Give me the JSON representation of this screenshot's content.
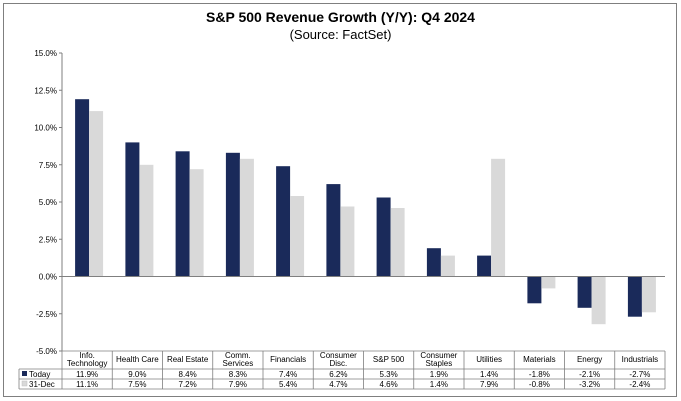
{
  "chart_data": {
    "type": "bar",
    "title": "S&P 500 Revenue Growth (Y/Y): Q4 2024",
    "subtitle": "(Source: FactSet)",
    "categories": [
      "Info. Technology",
      "Health Care",
      "Real Estate",
      "Comm. Services",
      "Financials",
      "Consumer Disc.",
      "S&P 500",
      "Consumer Staples",
      "Utilities",
      "Materials",
      "Energy",
      "Industrials"
    ],
    "category_lines": [
      [
        "Info.",
        "Technology"
      ],
      [
        "Health Care"
      ],
      [
        "Real Estate"
      ],
      [
        "Comm.",
        "Services"
      ],
      [
        "Financials"
      ],
      [
        "Consumer",
        "Disc."
      ],
      [
        "S&P 500"
      ],
      [
        "Consumer",
        "Staples"
      ],
      [
        "Utilities"
      ],
      [
        "Materials"
      ],
      [
        "Energy"
      ],
      [
        "Industrials"
      ]
    ],
    "series": [
      {
        "name": "Today",
        "color": "#1a2a5a",
        "values": [
          11.9,
          9.0,
          8.4,
          8.3,
          7.4,
          6.2,
          5.3,
          1.9,
          1.4,
          -1.8,
          -2.1,
          -2.7
        ],
        "labels": [
          "11.9%",
          "9.0%",
          "8.4%",
          "8.3%",
          "7.4%",
          "6.2%",
          "5.3%",
          "1.9%",
          "1.4%",
          "-1.8%",
          "-2.1%",
          "-2.7%"
        ]
      },
      {
        "name": "31-Dec",
        "color": "#d9d9d9",
        "values": [
          11.1,
          7.5,
          7.2,
          7.9,
          5.4,
          4.7,
          4.6,
          1.4,
          7.9,
          -0.8,
          -3.2,
          -2.4
        ],
        "labels": [
          "11.1%",
          "7.5%",
          "7.2%",
          "7.9%",
          "5.4%",
          "4.7%",
          "4.6%",
          "1.4%",
          "7.9%",
          "-0.8%",
          "-3.2%",
          "-2.4%"
        ]
      }
    ],
    "ylim": [
      -5.0,
      15.0
    ],
    "yticks": [
      15.0,
      12.5,
      10.0,
      7.5,
      5.0,
      2.5,
      0.0,
      -2.5,
      -5.0
    ],
    "ytick_labels": [
      "15.0%",
      "12.5%",
      "10.0%",
      "7.5%",
      "5.0%",
      "2.5%",
      "0.0%",
      "-2.5%",
      "-5.0%"
    ],
    "legend": "data-table",
    "grid": false
  }
}
